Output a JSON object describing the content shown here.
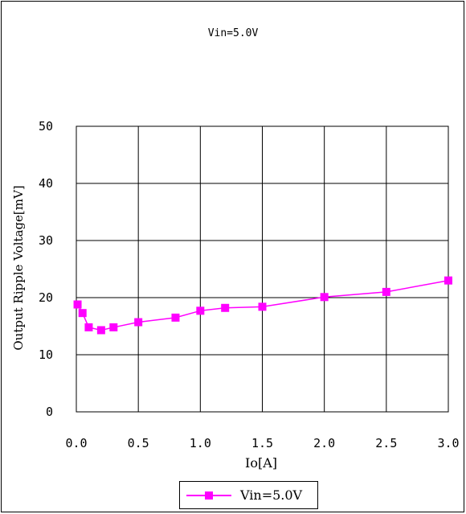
{
  "chart_data": {
    "type": "line",
    "title": "Vin=5.0V",
    "xlabel": "Io[A]",
    "ylabel": "Output Ripple Voltage[mV]",
    "xlim": [
      0,
      3.0
    ],
    "ylim": [
      0,
      50
    ],
    "xticks": [
      "0.0",
      "0.5",
      "1.0",
      "1.5",
      "2.0",
      "2.5",
      "3.0"
    ],
    "yticks": [
      "0",
      "10",
      "20",
      "30",
      "40",
      "50"
    ],
    "grid": true,
    "legend_position": "bottom",
    "series": [
      {
        "name": "Vin=5.0V",
        "color": "#ff00ff",
        "marker": "square",
        "x": [
          0.01,
          0.05,
          0.1,
          0.2,
          0.3,
          0.5,
          0.8,
          1.0,
          1.2,
          1.5,
          2.0,
          2.5,
          3.0
        ],
        "y": [
          18.8,
          17.3,
          14.8,
          14.3,
          14.8,
          15.7,
          16.5,
          17.7,
          18.2,
          18.4,
          20.1,
          21.0,
          23.0
        ]
      }
    ]
  }
}
